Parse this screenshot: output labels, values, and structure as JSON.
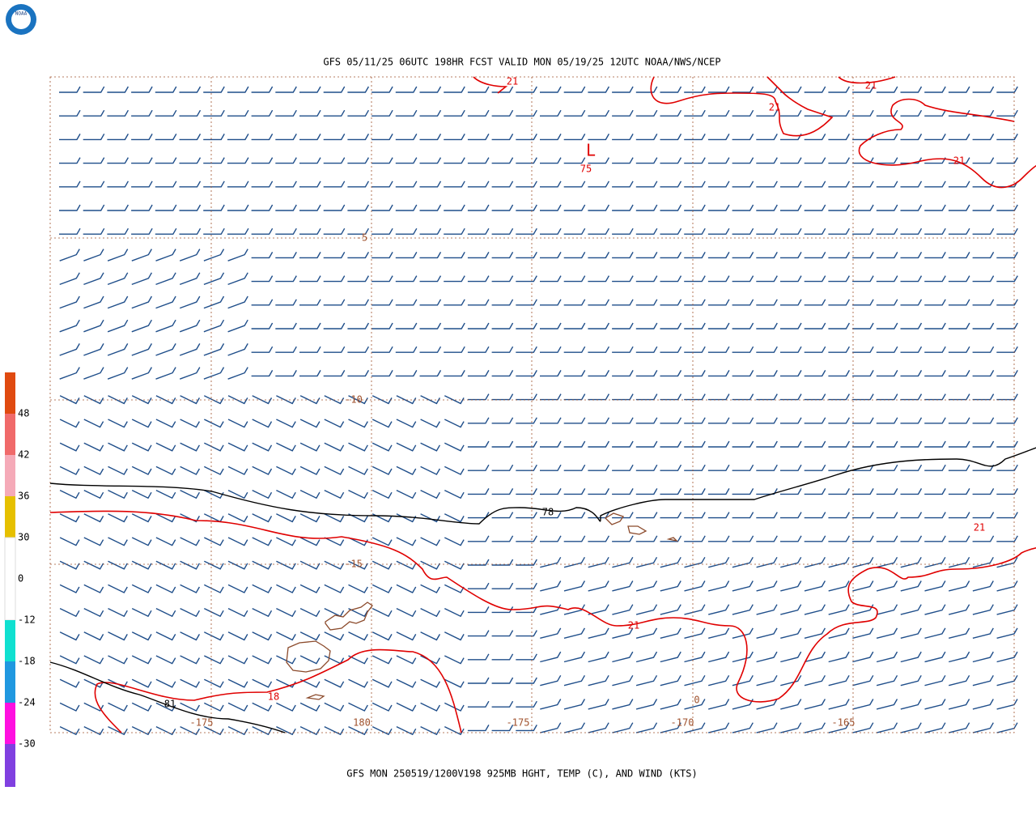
{
  "header": {
    "logo": "NOAA",
    "title": "GFS 05/11/25 06UTC 198HR FCST VALID MON 05/19/25 12UTC NOAA/NWS/NCEP"
  },
  "map": {
    "lat_labels": [
      "-5",
      "-10",
      "-15"
    ],
    "lon_labels": [
      "-175",
      "180",
      "-175",
      "-170",
      "-165"
    ],
    "contour_labels": [
      "21",
      "21",
      "21",
      "21",
      "21",
      "78",
      "21",
      "18",
      "81",
      "0"
    ],
    "low": {
      "symbol": "L",
      "value": "75"
    }
  },
  "colorbar": {
    "labels": [
      "48",
      "42",
      "36",
      "30",
      "0",
      "-12",
      "-18",
      "-24",
      "-30"
    ]
  },
  "footer": "GFS MON 250519/1200V198 925MB HGHT, TEMP (C), AND WIND (KTS)"
}
